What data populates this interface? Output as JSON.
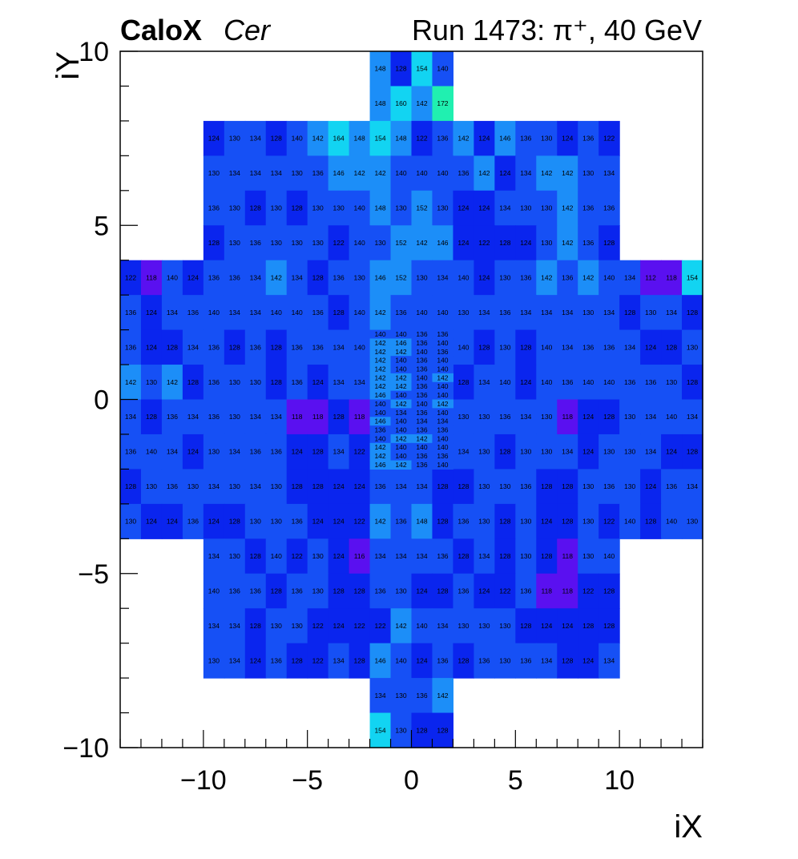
{
  "header": {
    "brand": "CaloX",
    "channel": "Cer",
    "run_info": "Run 1473:   π⁺, 40 GeV"
  },
  "chart_data": {
    "type": "heatmap",
    "xlabel": "iX",
    "ylabel": "iY",
    "xlim": [
      -14,
      14
    ],
    "ylim": [
      -10,
      10
    ],
    "x_ticks": [
      -10,
      -5,
      0,
      5,
      10
    ],
    "x_tick_labels": [
      "−10",
      "−5",
      "0",
      "5",
      "10"
    ],
    "y_ticks": [
      -10,
      -5,
      0,
      5,
      10
    ],
    "y_tick_labels": [
      "−10",
      "−5",
      "0",
      "5",
      "10"
    ],
    "value_range": [
      112,
      172
    ],
    "colors": {
      "low": "#5a10f0",
      "mid_low": "#0a25ee",
      "mid": "#1650f5",
      "mid_high": "#1c8ef8",
      "high": "#12d4f2",
      "peak": "#20f0b0"
    },
    "rows": [
      {
        "y0": 9,
        "y1": 10,
        "x0": -2,
        "w": 1,
        "values": [
          148,
          128,
          154,
          140
        ]
      },
      {
        "y0": 8,
        "y1": 9,
        "x0": -2,
        "w": 1,
        "values": [
          148,
          160,
          142,
          172
        ]
      },
      {
        "y0": 7,
        "y1": 8,
        "x0": -10,
        "w": 1,
        "values": [
          124,
          130,
          134,
          128,
          140,
          142,
          164,
          148,
          154,
          148,
          122,
          136,
          142,
          124,
          146,
          136,
          130,
          124,
          136,
          122
        ]
      },
      {
        "y0": 6,
        "y1": 7,
        "x0": -10,
        "w": 1,
        "values": [
          130,
          134,
          134,
          134,
          130,
          136,
          146,
          142,
          142,
          140,
          140,
          140,
          136,
          142,
          124,
          134,
          142,
          142,
          130,
          134
        ]
      },
      {
        "y0": 5,
        "y1": 6,
        "x0": -10,
        "w": 1,
        "values": [
          136,
          130,
          128,
          130,
          128,
          130,
          130,
          140,
          148,
          130,
          152,
          130,
          124,
          124,
          134,
          130,
          130,
          142,
          136,
          136
        ]
      },
      {
        "y0": 4,
        "y1": 5,
        "x0": -10,
        "w": 1,
        "values": [
          128,
          130,
          136,
          130,
          130,
          130,
          122,
          140,
          130,
          152,
          142,
          146,
          124,
          122,
          128,
          124,
          130,
          142,
          136,
          128
        ]
      },
      {
        "y0": 3,
        "y1": 4,
        "x0": -14,
        "w": 1,
        "values": [
          122,
          118,
          140,
          124,
          136,
          136,
          134,
          142,
          134,
          128,
          136,
          130,
          146,
          152,
          130,
          134,
          140,
          124,
          130,
          136,
          142,
          136,
          142,
          140,
          134,
          112,
          118,
          154
        ]
      },
      {
        "y0": 2,
        "y1": 3,
        "x0": -14,
        "w": 1,
        "values": [
          136,
          124,
          134,
          136,
          140,
          134,
          134,
          140,
          140,
          136,
          128,
          140,
          142,
          136,
          140,
          140,
          130,
          134,
          136,
          134,
          134,
          134,
          130,
          134,
          128,
          130,
          134,
          128
        ]
      },
      {
        "y0": 1,
        "y1": 2,
        "x0": -14,
        "w": 1,
        "values": [
          136,
          124,
          128,
          134,
          136,
          128,
          136,
          128,
          136,
          136,
          134,
          140,
          null,
          null,
          null,
          null,
          140,
          128,
          130,
          128,
          140,
          134,
          136,
          136,
          134,
          124,
          128,
          130
        ]
      },
      {
        "y0": 0,
        "y1": 1,
        "x0": -14,
        "w": 1,
        "values": [
          142,
          130,
          142,
          128,
          136,
          130,
          130,
          128,
          136,
          124,
          134,
          134,
          null,
          null,
          null,
          null,
          128,
          134,
          140,
          124,
          140,
          136,
          140,
          140,
          136,
          136,
          130,
          128
        ]
      },
      {
        "y0": -1,
        "y1": 0,
        "x0": -14,
        "w": 1,
        "values": [
          134,
          128,
          136,
          134,
          136,
          130,
          134,
          134,
          118,
          118,
          128,
          118,
          null,
          null,
          null,
          null,
          130,
          130,
          136,
          134,
          130,
          118,
          124,
          128,
          130,
          134,
          140,
          134
        ]
      },
      {
        "y0": -2,
        "y1": -1,
        "x0": -14,
        "w": 1,
        "values": [
          136,
          140,
          134,
          124,
          130,
          134,
          136,
          136,
          124,
          128,
          134,
          122,
          null,
          null,
          null,
          null,
          134,
          130,
          128,
          130,
          130,
          134,
          124,
          130,
          130,
          134,
          124,
          128
        ]
      },
      {
        "y0": -3,
        "y1": -2,
        "x0": -14,
        "w": 1,
        "values": [
          128,
          130,
          136,
          130,
          134,
          130,
          134,
          130,
          128,
          128,
          124,
          124,
          136,
          134,
          134,
          128,
          128,
          130,
          130,
          136,
          128,
          128,
          130,
          136,
          130,
          124,
          136,
          134
        ]
      },
      {
        "y0": -4,
        "y1": -3,
        "x0": -14,
        "w": 1,
        "values": [
          130,
          124,
          124,
          136,
          124,
          128,
          130,
          130,
          136,
          124,
          124,
          122,
          142,
          136,
          148,
          128,
          136,
          130,
          128,
          130,
          124,
          128,
          130,
          122,
          140,
          128,
          140,
          130
        ]
      },
      {
        "y0": -5,
        "y1": -4,
        "x0": -10,
        "w": 1,
        "values": [
          134,
          130,
          128,
          140,
          122,
          130,
          124,
          116,
          134,
          134,
          134,
          136,
          128,
          134,
          128,
          130,
          128,
          118,
          130,
          140
        ]
      },
      {
        "y0": -6,
        "y1": -5,
        "x0": -10,
        "w": 1,
        "values": [
          140,
          136,
          136,
          128,
          136,
          130,
          128,
          128,
          136,
          130,
          124,
          128,
          136,
          124,
          122,
          136,
          118,
          118,
          122,
          128
        ]
      },
      {
        "y0": -7,
        "y1": -6,
        "x0": -10,
        "w": 1,
        "values": [
          134,
          134,
          128,
          130,
          130,
          122,
          124,
          122,
          122,
          142,
          140,
          134,
          130,
          130,
          130,
          128,
          124,
          124,
          128,
          128
        ]
      },
      {
        "y0": -8,
        "y1": -7,
        "x0": -10,
        "w": 1,
        "values": [
          130,
          134,
          124,
          136,
          128,
          122,
          134,
          128,
          146,
          140,
          124,
          136,
          128,
          136,
          130,
          136,
          134,
          128,
          124,
          134
        ]
      },
      {
        "y0": -9,
        "y1": -8,
        "x0": -2,
        "w": 1,
        "values": [
          134,
          130,
          136,
          142
        ]
      },
      {
        "y0": -10,
        "y1": -9,
        "x0": -2,
        "w": 1,
        "values": [
          154,
          130,
          128,
          128
        ]
      }
    ],
    "fine_rows": [
      {
        "y0": 1.75,
        "y1": 2.0,
        "x0": -2,
        "w": 1,
        "values": [
          140,
          140,
          136,
          136
        ]
      },
      {
        "y0": 1.5,
        "y1": 1.75,
        "x0": -2,
        "w": 1,
        "values": [
          142,
          146,
          136,
          140
        ]
      },
      {
        "y0": 1.25,
        "y1": 1.5,
        "x0": -2,
        "w": 1,
        "values": [
          142,
          142,
          140,
          136
        ]
      },
      {
        "y0": 1.0,
        "y1": 1.25,
        "x0": -2,
        "w": 1,
        "values": [
          142,
          140,
          136,
          140
        ]
      },
      {
        "y0": 0.75,
        "y1": 1.0,
        "x0": -2,
        "w": 1,
        "values": [
          142,
          140,
          136,
          140
        ]
      },
      {
        "y0": 0.5,
        "y1": 0.75,
        "x0": -2,
        "w": 1,
        "values": [
          142,
          142,
          140,
          142
        ]
      },
      {
        "y0": 0.25,
        "y1": 0.5,
        "x0": -2,
        "w": 1,
        "values": [
          142,
          142,
          136,
          140
        ]
      },
      {
        "y0": 0.0,
        "y1": 0.25,
        "x0": -2,
        "w": 1,
        "values": [
          146,
          140,
          136,
          140
        ]
      },
      {
        "y0": -0.25,
        "y1": 0.0,
        "x0": -2,
        "w": 1,
        "values": [
          140,
          142,
          140,
          142
        ]
      },
      {
        "y0": -0.5,
        "y1": -0.25,
        "x0": -2,
        "w": 1,
        "values": [
          140,
          134,
          136,
          140
        ]
      },
      {
        "y0": -0.75,
        "y1": -0.5,
        "x0": -2,
        "w": 1,
        "values": [
          146,
          140,
          134,
          134
        ]
      },
      {
        "y0": -1.0,
        "y1": -0.75,
        "x0": -2,
        "w": 1,
        "values": [
          136,
          140,
          136,
          136
        ]
      },
      {
        "y0": -1.25,
        "y1": -1.0,
        "x0": -2,
        "w": 1,
        "values": [
          140,
          142,
          142,
          140
        ]
      },
      {
        "y0": -1.5,
        "y1": -1.25,
        "x0": -2,
        "w": 1,
        "values": [
          142,
          140,
          140,
          140
        ]
      },
      {
        "y0": -1.75,
        "y1": -1.5,
        "x0": -2,
        "w": 1,
        "values": [
          142,
          140,
          136,
          136
        ]
      },
      {
        "y0": -2.0,
        "y1": -1.75,
        "x0": -2,
        "w": 1,
        "values": [
          146,
          142,
          136,
          140
        ]
      }
    ]
  }
}
